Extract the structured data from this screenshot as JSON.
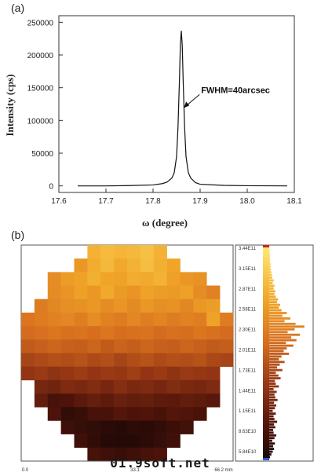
{
  "panel_a_label": "(a)",
  "panel_b_label": "(b)",
  "watermark": "01.9soft.net",
  "chart_data": [
    {
      "type": "line",
      "xlabel": "ω (degree)",
      "ylabel": "Intensity (cps)",
      "xlim": [
        17.6,
        18.1
      ],
      "ylim": [
        -10000,
        260000
      ],
      "xticks": [
        "17.6",
        "17.7",
        "17.8",
        "17.9",
        "18.0",
        "18.1"
      ],
      "yticks": [
        "0",
        "50000",
        "100000",
        "150000",
        "200000",
        "250000"
      ],
      "annotation": "FWHM=40arcsec",
      "grid": false,
      "series": [
        {
          "x": [
            17.64,
            17.7,
            17.75,
            17.8,
            17.82,
            17.83,
            17.84,
            17.845,
            17.85,
            17.853,
            17.856,
            17.858,
            17.86,
            17.862,
            17.864,
            17.867,
            17.87,
            17.875,
            17.88,
            17.89,
            17.9,
            17.95,
            18.0,
            18.05,
            18.085
          ],
          "y": [
            0,
            0,
            500,
            1500,
            3500,
            6000,
            12000,
            20000,
            45000,
            90000,
            160000,
            215000,
            237000,
            215000,
            160000,
            90000,
            45000,
            20000,
            12000,
            5000,
            2500,
            800,
            300,
            100,
            0
          ]
        }
      ]
    },
    {
      "type": "heatmap",
      "x_tick_labels": [
        "0.0",
        "33.1",
        "66.2 mm"
      ],
      "colorbar_labels": [
        "3.44E11",
        "3.15E11",
        "2.87E11",
        "2.58E11",
        "2.30E11",
        "2.01E11",
        "1.73E11",
        "1.44E11",
        "1.15E11",
        "8.63E10",
        "5.84E10"
      ],
      "colorbar_range": [
        58400000000.0,
        344000000000.0
      ],
      "grid_rows": 16,
      "grid_cols": 16,
      "values": [
        [
          0,
          0,
          0,
          0,
          0,
          0.8,
          0.83,
          0.81,
          0.82,
          0.85,
          0.8,
          0,
          0,
          0,
          0,
          0
        ],
        [
          0,
          0,
          0,
          0,
          0.7,
          0.78,
          0.82,
          0.76,
          0.8,
          0.84,
          0.79,
          0.75,
          0,
          0,
          0,
          0
        ],
        [
          0,
          0,
          0.66,
          0.72,
          0.74,
          0.79,
          0.75,
          0.74,
          0.78,
          0.77,
          0.8,
          0.73,
          0.7,
          0.68,
          0,
          0
        ],
        [
          0,
          0,
          0.66,
          0.69,
          0.73,
          0.7,
          0.76,
          0.71,
          0.69,
          0.74,
          0.72,
          0.71,
          0.73,
          0.66,
          0.62,
          0
        ],
        [
          0,
          0.6,
          0.64,
          0.67,
          0.68,
          0.7,
          0.66,
          0.69,
          0.65,
          0.7,
          0.67,
          0.68,
          0.64,
          0.7,
          0.72,
          0
        ],
        [
          0.58,
          0.6,
          0.62,
          0.64,
          0.61,
          0.66,
          0.62,
          0.6,
          0.64,
          0.61,
          0.63,
          0.6,
          0.62,
          0.61,
          0.74,
          0.6
        ],
        [
          0.54,
          0.56,
          0.58,
          0.56,
          0.57,
          0.55,
          0.58,
          0.55,
          0.56,
          0.57,
          0.54,
          0.56,
          0.55,
          0.58,
          0.56,
          0.54
        ],
        [
          0.48,
          0.5,
          0.52,
          0.5,
          0.49,
          0.52,
          0.48,
          0.51,
          0.49,
          0.52,
          0.5,
          0.49,
          0.52,
          0.5,
          0.48,
          0.49
        ],
        [
          0.4,
          0.42,
          0.44,
          0.43,
          0.45,
          0.42,
          0.44,
          0.4,
          0.43,
          0.45,
          0.42,
          0.44,
          0.43,
          0.45,
          0.41,
          0.4
        ],
        [
          0.34,
          0.36,
          0.33,
          0.35,
          0.37,
          0.34,
          0.36,
          0.35,
          0.38,
          0.34,
          0.36,
          0.33,
          0.36,
          0.35,
          0.34,
          0
        ],
        [
          0,
          0.26,
          0.24,
          0.28,
          0.27,
          0.29,
          0.26,
          0.3,
          0.27,
          0.28,
          0.26,
          0.29,
          0.27,
          0.26,
          0.28,
          0
        ],
        [
          0,
          0.2,
          0.12,
          0.14,
          0.18,
          0.21,
          0.19,
          0.22,
          0.2,
          0.21,
          0.19,
          0.18,
          0.2,
          0.19,
          0.17,
          0
        ],
        [
          0,
          0,
          0.14,
          0.06,
          0.08,
          0.12,
          0.13,
          0.16,
          0.14,
          0.15,
          0.13,
          0.16,
          0.15,
          0.13,
          0,
          0
        ],
        [
          0,
          0,
          0,
          0.1,
          0.07,
          0.06,
          0.04,
          0.03,
          0.05,
          0.04,
          0.06,
          0.09,
          0.11,
          0,
          0,
          0
        ],
        [
          0,
          0,
          0,
          0,
          0.1,
          0.06,
          0.03,
          0.02,
          0.03,
          0.05,
          0.07,
          0.1,
          0,
          0,
          0,
          0
        ],
        [
          0,
          0,
          0,
          0,
          0,
          0.12,
          0.1,
          0.08,
          0.1,
          0.12,
          0.14,
          0,
          0,
          0,
          0,
          0
        ]
      ],
      "histogram": [
        0.02,
        0.05,
        0.08,
        0.11,
        0.09,
        0.13,
        0.07,
        0.12,
        0.16,
        0.1,
        0.09,
        0.14,
        0.11,
        0.18,
        0.12,
        0.1,
        0.15,
        0.08,
        0.13,
        0.16,
        0.11,
        0.19,
        0.14,
        0.12,
        0.17,
        0.1,
        0.22,
        0.15,
        0.13,
        0.26,
        0.21,
        0.15,
        0.3,
        0.18,
        0.24,
        0.35,
        0.22,
        0.28,
        0.45,
        0.33,
        0.4,
        0.55,
        0.38,
        0.62,
        0.5,
        0.7,
        0.42,
        0.58,
        0.8,
        0.6,
        0.35,
        0.48,
        0.3,
        0.4,
        0.28,
        0.22,
        0.25,
        0.18,
        0.2,
        0.15,
        0.12,
        0.14,
        0.1,
        0.12,
        0.08,
        0.1,
        0.07,
        0.06,
        0.05,
        0.04,
        0.03,
        0.03,
        0.02,
        0.02,
        0.02,
        0.01,
        0.01,
        0.01
      ]
    }
  ]
}
